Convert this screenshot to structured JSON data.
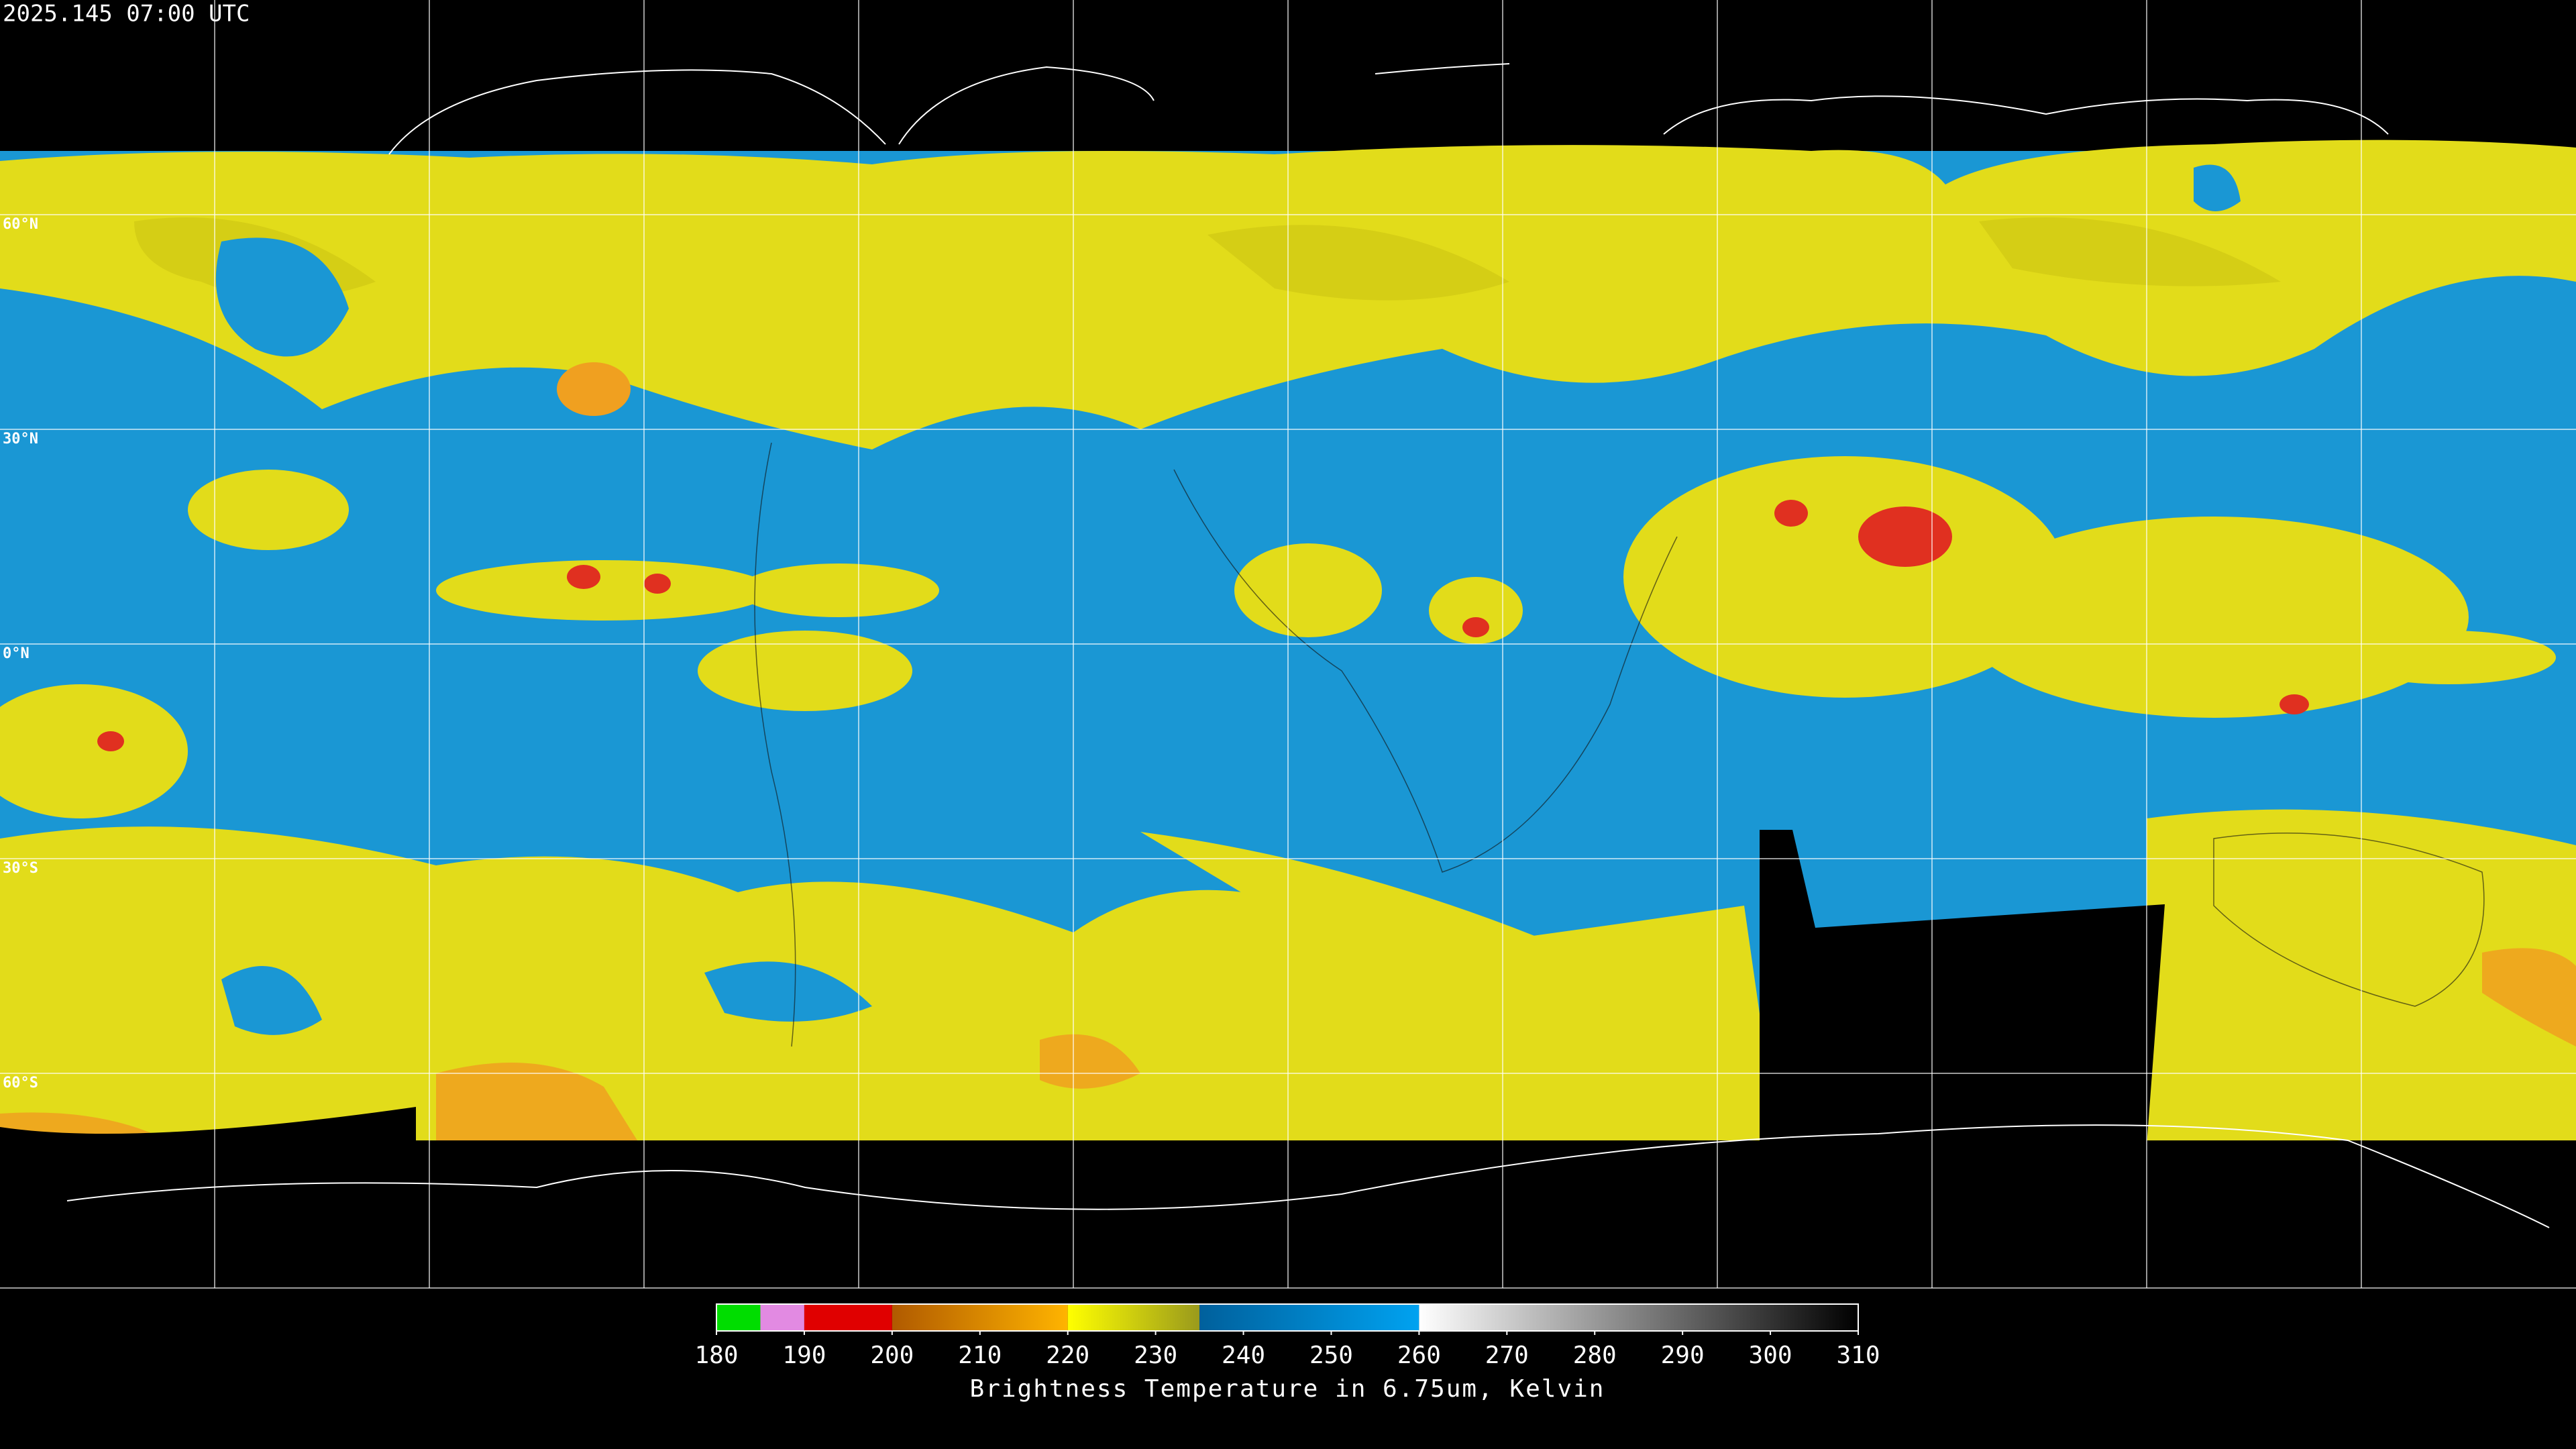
{
  "timestamp": "2025.145 07:00 UTC",
  "map": {
    "lat_labels": [
      "60°N",
      "30°N",
      "0°N",
      "30°S",
      "60°S"
    ]
  },
  "colorbar": {
    "title": "Brightness Temperature in 6.75um, Kelvin",
    "range": [
      180,
      310
    ],
    "ticks": [
      180,
      190,
      200,
      210,
      220,
      230,
      240,
      250,
      260,
      270,
      280,
      290,
      300,
      310
    ],
    "segments": [
      {
        "from": 180,
        "to": 185,
        "colors": [
          "#00dd00",
          "#00dd00"
        ]
      },
      {
        "from": 185,
        "to": 190,
        "colors": [
          "#e28ae2",
          "#e28ae2"
        ]
      },
      {
        "from": 190,
        "to": 200,
        "colors": [
          "#e00000",
          "#e00000"
        ]
      },
      {
        "from": 200,
        "to": 220,
        "colors": [
          "#b05a00",
          "#ffb400"
        ]
      },
      {
        "from": 220,
        "to": 235,
        "colors": [
          "#ffff00",
          "#9a9a1c"
        ]
      },
      {
        "from": 235,
        "to": 260,
        "colors": [
          "#00609c",
          "#00a2f0"
        ]
      },
      {
        "from": 260,
        "to": 310,
        "colors": [
          "#ffffff",
          "#000000"
        ]
      }
    ]
  }
}
